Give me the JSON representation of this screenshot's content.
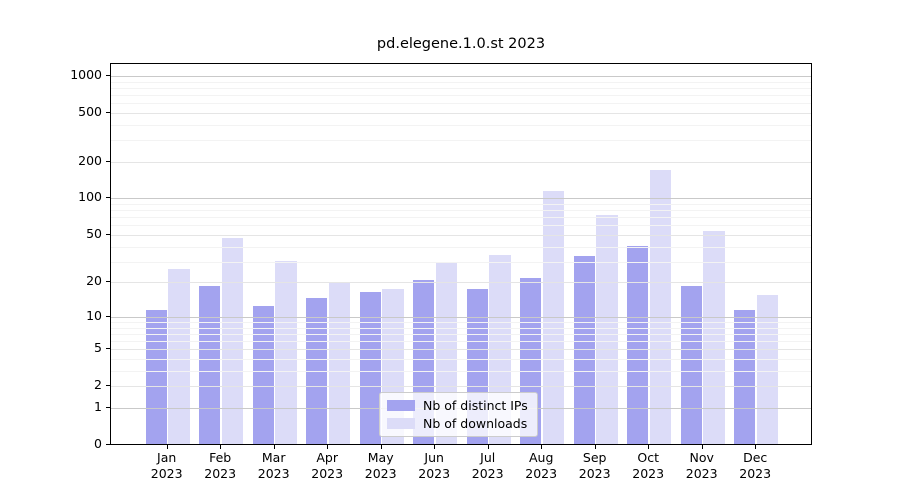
{
  "title": "pd.elegene.1.0.st 2023",
  "chart_data": {
    "type": "bar",
    "title": "pd.elegene.1.0.st 2023",
    "categories": [
      "Jan",
      "Feb",
      "Mar",
      "Apr",
      "May",
      "Jun",
      "Jul",
      "Aug",
      "Sep",
      "Oct",
      "Nov",
      "Dec"
    ],
    "year_label": "2023",
    "series": [
      {
        "name": "Nb of distinct IPs",
        "color": "#a3a3ef",
        "values": [
          11,
          18,
          12,
          14,
          16,
          20,
          17,
          21,
          32,
          39,
          18,
          11
        ]
      },
      {
        "name": "Nb of downloads",
        "color": "#dcdcf8",
        "values": [
          25,
          45,
          29,
          19,
          17,
          28,
          33,
          110,
          70,
          165,
          52,
          15
        ]
      }
    ],
    "yscale": "log1p",
    "ylim": [
      0,
      1200
    ],
    "ytick_labels": [
      "1000",
      "500",
      "200",
      "100",
      "50",
      "20",
      "10",
      "5",
      "2",
      "1",
      "0"
    ],
    "ytick_values": [
      1000,
      500,
      200,
      100,
      50,
      20,
      10,
      5,
      2,
      1,
      0
    ],
    "minor_gridline_values": [
      3,
      4,
      6,
      7,
      8,
      9,
      30,
      40,
      60,
      70,
      80,
      90,
      300,
      400,
      600,
      700,
      800,
      900
    ],
    "grid": true,
    "legend_position": "lower center",
    "xlabel": "",
    "ylabel": ""
  },
  "colors": {
    "major_grid": "#c9c9c9",
    "labeled_grid": "#e5e5e5",
    "minor_grid": "#f3f3f3",
    "axis": "#000000",
    "legend_border": "#cccccc"
  }
}
